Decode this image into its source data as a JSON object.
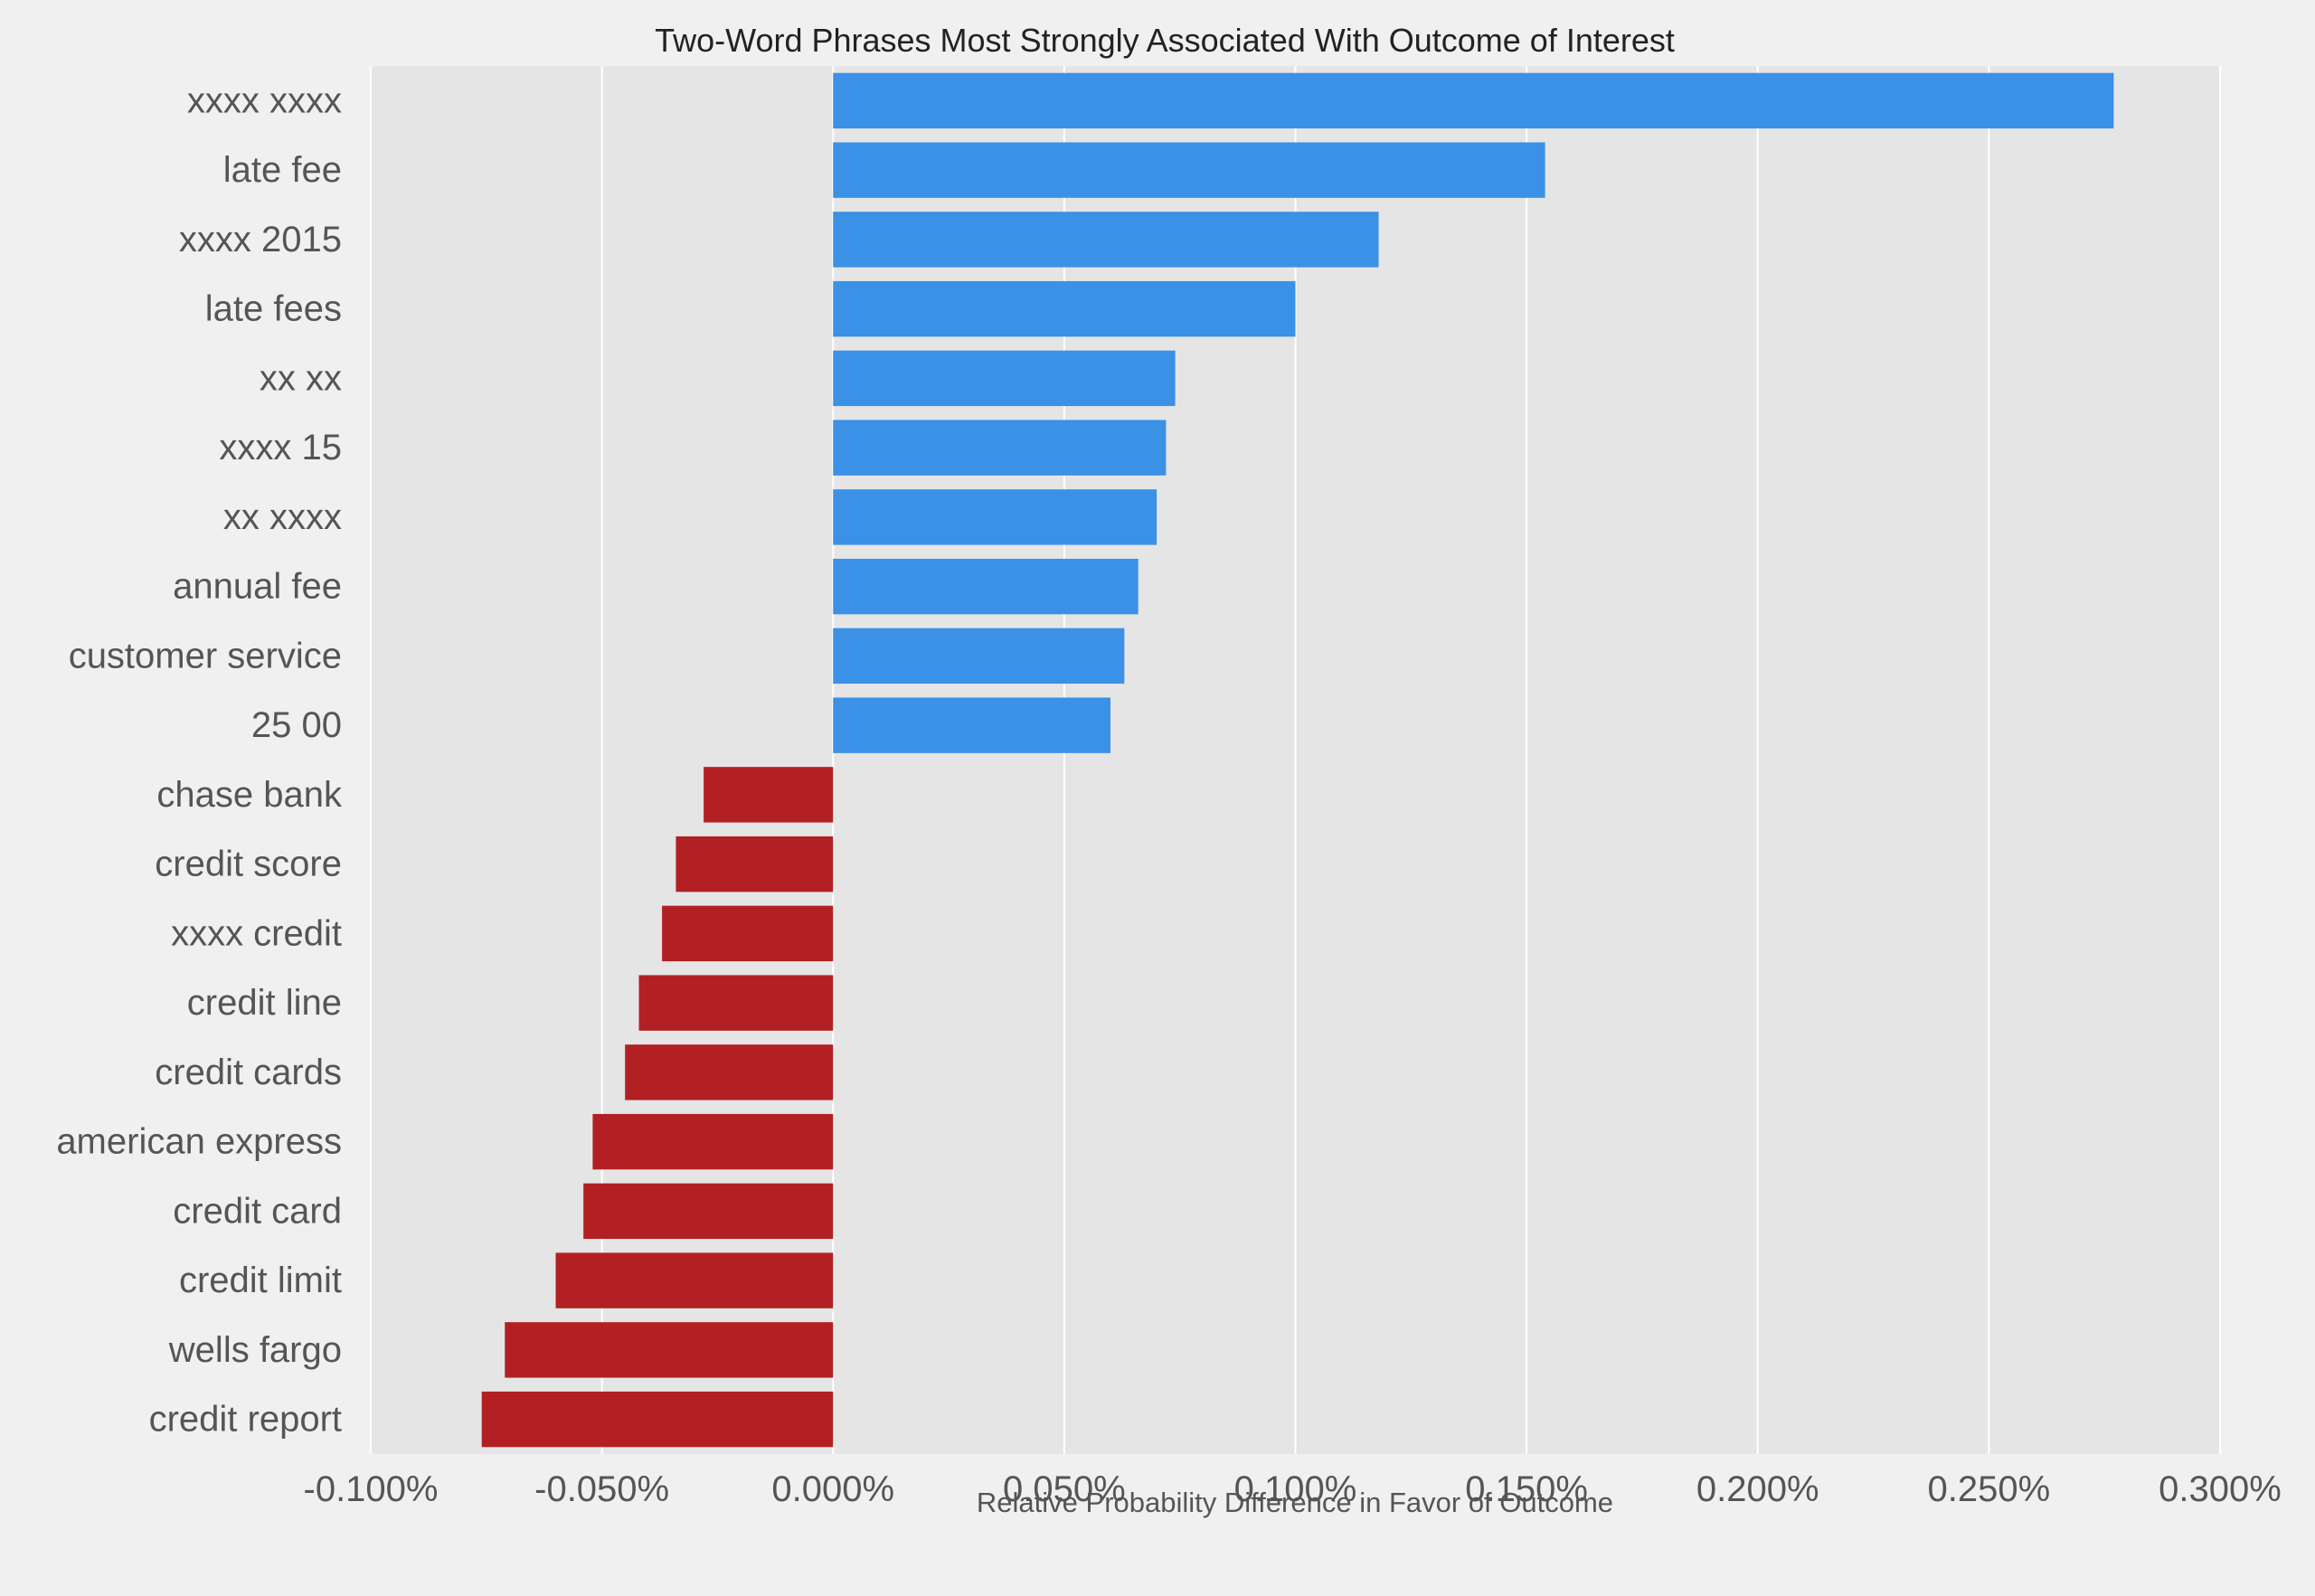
{
  "chart_data": {
    "type": "bar",
    "orientation": "horizontal",
    "title": "Two-Word Phrases Most Strongly Associated With Outcome of Interest",
    "xlabel": "Relative Probability Difference in Favor of Outcome",
    "ylabel": "",
    "xlim": [
      -0.001,
      0.003
    ],
    "x_ticks": [
      -0.001,
      -0.0005,
      0,
      0.0005,
      0.001,
      0.0015,
      0.002,
      0.0025,
      0.003
    ],
    "x_tick_labels": [
      "-0.100%",
      "-0.050%",
      "0.000%",
      "0.050%",
      "0.100%",
      "0.150%",
      "0.200%",
      "0.250%",
      "0.300%"
    ],
    "grid": "vertical",
    "colors": {
      "positive": "#3b91e6",
      "negative": "#b22024",
      "plot_background": "#e5e5e5",
      "figure_background": "#f0f0f0",
      "gridline": "#ffffff"
    },
    "categories": [
      "xxxx xxxx",
      "late fee",
      "xxxx 2015",
      "late fees",
      "xx xx",
      "xxxx 15",
      "xx xxxx",
      "annual fee",
      "customer service",
      "25 00",
      "chase bank",
      "credit score",
      "xxxx credit",
      "credit line",
      "credit cards",
      "american express",
      "credit card",
      "credit limit",
      "wells fargo",
      "credit report"
    ],
    "values": [
      0.00277,
      0.00154,
      0.00118,
      0.001,
      0.00074,
      0.00072,
      0.0007,
      0.00066,
      0.00063,
      0.0006,
      -0.00028,
      -0.00034,
      -0.00037,
      -0.00042,
      -0.00045,
      -0.00052,
      -0.00054,
      -0.0006,
      -0.00071,
      -0.00076
    ]
  }
}
